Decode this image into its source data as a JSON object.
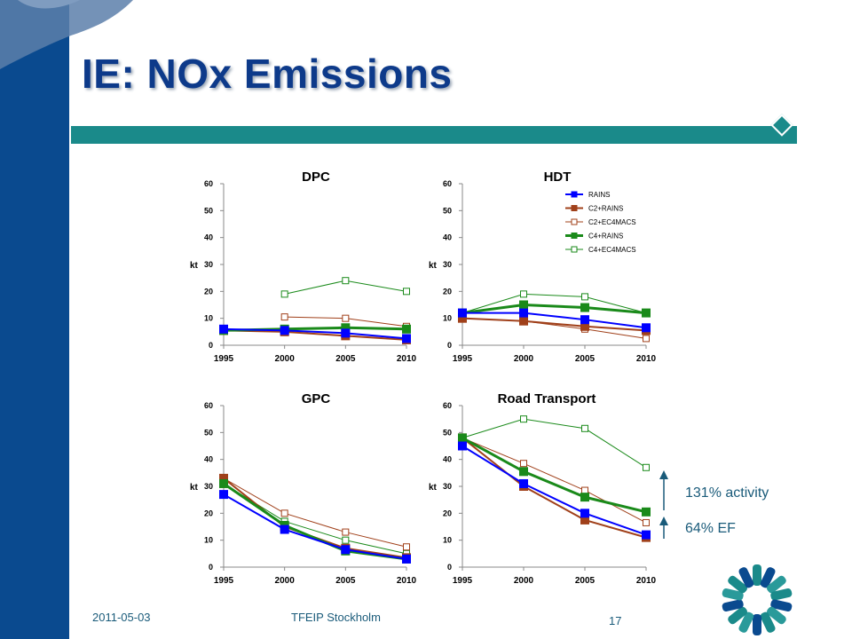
{
  "slide": {
    "title": "IE: NOx Emissions",
    "footer_date": "2011-05-03",
    "footer_event": "TFEIP Stockholm",
    "page_number": "17",
    "annotation_activity": "131% activity",
    "annotation_ef": "64% EF"
  },
  "colors": {
    "sidebar": "#0a4a8f",
    "teal_bar": "#1a8a8a",
    "title": "#0d3a8a",
    "RAINS": "#0000ff",
    "C2+RAINS": "#a0401a",
    "C2+EC4MACS": "#a0401a",
    "C4+RAINS": "#1a8a1a",
    "C4+EC4MACS": "#1a8a1a"
  },
  "chart_data": [
    {
      "type": "line",
      "title": "DPC",
      "xlabel": "",
      "ylabel": "kt",
      "x": [
        1995,
        2000,
        2005,
        2010
      ],
      "ylim": [
        0,
        60
      ],
      "yticks": [
        0,
        10,
        20,
        30,
        40,
        50,
        60
      ],
      "series": [
        {
          "name": "RAINS",
          "values": [
            6,
            5.5,
            4.5,
            2.5
          ]
        },
        {
          "name": "C2+RAINS",
          "values": [
            5.5,
            5,
            3.5,
            2
          ]
        },
        {
          "name": "C2+EC4MACS",
          "values": [
            null,
            10.5,
            10,
            7
          ]
        },
        {
          "name": "C4+RAINS",
          "values": [
            5.5,
            6,
            6.5,
            6
          ]
        },
        {
          "name": "C4+EC4MACS",
          "values": [
            null,
            19,
            24,
            20
          ]
        }
      ]
    },
    {
      "type": "line",
      "title": "HDT",
      "xlabel": "",
      "ylabel": "kt",
      "x": [
        1995,
        2000,
        2005,
        2010
      ],
      "ylim": [
        0,
        60
      ],
      "yticks": [
        0,
        10,
        20,
        30,
        40,
        50,
        60
      ],
      "legend": "top-right",
      "series": [
        {
          "name": "RAINS",
          "values": [
            12,
            12,
            9.5,
            6.5
          ]
        },
        {
          "name": "C2+RAINS",
          "values": [
            10,
            9,
            7,
            5.5
          ]
        },
        {
          "name": "C2+EC4MACS",
          "values": [
            10,
            9,
            6,
            2.5
          ]
        },
        {
          "name": "C4+RAINS",
          "values": [
            12,
            15,
            14,
            12
          ]
        },
        {
          "name": "C4+EC4MACS",
          "values": [
            12,
            19,
            18,
            12
          ]
        }
      ]
    },
    {
      "type": "line",
      "title": "GPC",
      "xlabel": "",
      "ylabel": "kt",
      "x": [
        1995,
        2000,
        2005,
        2010
      ],
      "ylim": [
        0,
        60
      ],
      "yticks": [
        0,
        10,
        20,
        30,
        40,
        50,
        60
      ],
      "series": [
        {
          "name": "RAINS",
          "values": [
            27,
            14,
            6.5,
            3
          ]
        },
        {
          "name": "C2+RAINS",
          "values": [
            33,
            15,
            7,
            3.5
          ]
        },
        {
          "name": "C2+EC4MACS",
          "values": [
            33,
            20,
            13,
            7.5
          ]
        },
        {
          "name": "C4+RAINS",
          "values": [
            31,
            15.5,
            6,
            3
          ]
        },
        {
          "name": "C4+EC4MACS",
          "values": [
            31,
            17,
            10,
            5
          ]
        }
      ]
    },
    {
      "type": "line",
      "title": "Road Transport",
      "xlabel": "",
      "ylabel": "kt",
      "x": [
        1995,
        2000,
        2005,
        2010
      ],
      "ylim": [
        0,
        60
      ],
      "yticks": [
        0,
        10,
        20,
        30,
        40,
        50,
        60
      ],
      "series": [
        {
          "name": "RAINS",
          "values": [
            45,
            31,
            20,
            12
          ]
        },
        {
          "name": "C2+RAINS",
          "values": [
            48,
            30,
            17.5,
            11
          ]
        },
        {
          "name": "C2+EC4MACS",
          "values": [
            48,
            38.5,
            28.5,
            16.5
          ]
        },
        {
          "name": "C4+RAINS",
          "values": [
            48,
            35.5,
            26,
            20.5
          ]
        },
        {
          "name": "C4+EC4MACS",
          "values": [
            48,
            55,
            51.5,
            37
          ]
        }
      ]
    }
  ]
}
